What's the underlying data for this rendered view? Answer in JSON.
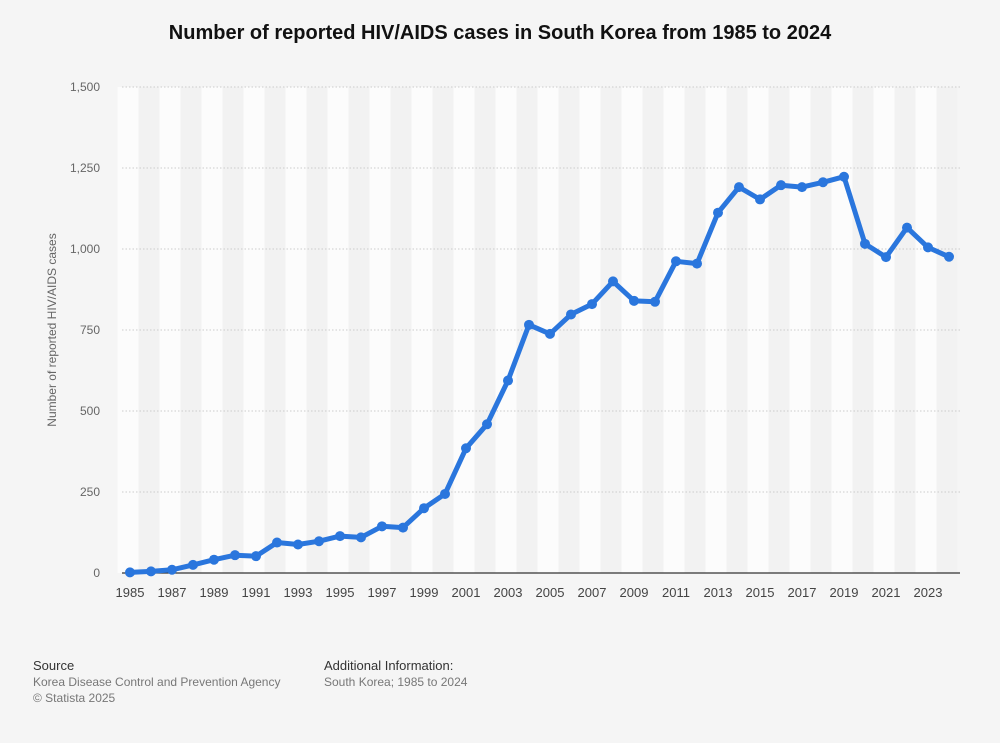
{
  "title": "Number of reported HIV/AIDS cases in South Korea from 1985 to 2024",
  "colors": {
    "line": "#2a76dd",
    "band_light": "#fcfcfc",
    "band_dark": "#f2f2f2",
    "grid": "#cccccc",
    "axis": "#333333"
  },
  "chart_data": {
    "type": "line",
    "title": "Number of reported HIV/AIDS cases in South Korea from 1985 to 2024",
    "xlabel": "",
    "ylabel": "Number of reported HIV/AIDS cases",
    "ylim": [
      0,
      1500
    ],
    "yticks": [
      0,
      250,
      500,
      750,
      1000,
      1250,
      1500
    ],
    "ytick_labels": [
      "0",
      "250",
      "500",
      "750",
      "1,000",
      "1,250",
      "1,500"
    ],
    "xtick_labels": [
      "1985",
      "1987",
      "1989",
      "1991",
      "1993",
      "1995",
      "1997",
      "1999",
      "2001",
      "2003",
      "2005",
      "2007",
      "2009",
      "2011",
      "2013",
      "2015",
      "2017",
      "2019",
      "2021",
      "2023"
    ],
    "grid": true,
    "legend": "none",
    "x": [
      1985,
      1986,
      1987,
      1988,
      1989,
      1990,
      1991,
      1992,
      1993,
      1994,
      1995,
      1996,
      1997,
      1998,
      1999,
      2000,
      2001,
      2002,
      2003,
      2004,
      2005,
      2006,
      2007,
      2008,
      2009,
      2010,
      2011,
      2012,
      2013,
      2014,
      2015,
      2016,
      2017,
      2018,
      2019,
      2020,
      2021,
      2022,
      2023,
      2024
    ],
    "values": [
      2,
      5,
      10,
      25,
      41,
      55,
      52,
      94,
      88,
      98,
      114,
      110,
      144,
      140,
      200,
      244,
      385,
      459,
      594,
      766,
      738,
      798,
      830,
      900,
      840,
      837,
      962,
      955,
      1112,
      1191,
      1153,
      1197,
      1191,
      1206,
      1223,
      1016,
      975,
      1066,
      1005,
      976
    ]
  },
  "footer": {
    "source_heading": "Source",
    "source_lines": [
      "Korea Disease Control and Prevention Agency",
      "© Statista 2025"
    ],
    "info_heading": "Additional Information:",
    "info_lines": [
      "South Korea; 1985 to 2024"
    ]
  }
}
